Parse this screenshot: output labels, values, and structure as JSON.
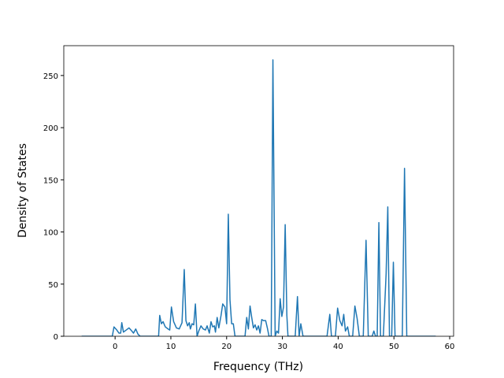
{
  "chart_data": {
    "type": "line",
    "x_label": "Frequency (THz)",
    "y_label": "Density of States",
    "color": "#1f77b4",
    "x": [
      -6,
      -0.5,
      -0.2,
      0.3,
      0.7,
      1.0,
      1.2,
      1.5,
      2.0,
      2.5,
      3.0,
      3.3,
      3.7,
      4.1,
      4.5,
      7.8,
      8.0,
      8.3,
      8.6,
      9.0,
      9.5,
      9.8,
      10.1,
      10.5,
      11.0,
      11.5,
      12.0,
      12.4,
      12.7,
      13.0,
      13.3,
      13.5,
      13.8,
      14.1,
      14.4,
      14.7,
      15.0,
      15.4,
      15.8,
      16.2,
      16.5,
      16.9,
      17.2,
      17.5,
      17.8,
      18.0,
      18.3,
      18.6,
      19.0,
      19.3,
      19.7,
      20.0,
      20.3,
      20.6,
      20.9,
      21.2,
      21.5,
      23.3,
      23.6,
      23.9,
      24.2,
      24.5,
      24.8,
      25.1,
      25.4,
      25.7,
      26.0,
      26.3,
      26.6,
      27.0,
      27.3,
      27.6,
      28.0,
      28.3,
      28.7,
      29.0,
      29.3,
      29.6,
      29.9,
      30.2,
      30.5,
      30.8,
      31.0,
      32.3,
      32.7,
      33.0,
      33.3,
      33.7,
      38.0,
      38.5,
      38.8,
      39.5,
      39.9,
      40.3,
      40.7,
      41.0,
      41.3,
      41.7,
      42.0,
      42.6,
      43.0,
      43.4,
      43.8,
      44.5,
      45.0,
      45.4,
      46.1,
      46.4,
      46.7,
      47.0,
      47.3,
      47.6,
      48.1,
      48.6,
      48.9,
      49.2,
      49.6,
      49.9,
      50.2,
      51.5,
      51.9,
      52.3,
      57.5
    ],
    "values": [
      0,
      0,
      9,
      6,
      3,
      3,
      13,
      4,
      6,
      8,
      5,
      3,
      7,
      2,
      0,
      0,
      20,
      12,
      14,
      9,
      7,
      6,
      28,
      14,
      8,
      7,
      13,
      64,
      15,
      10,
      13,
      7,
      12,
      11,
      31,
      0,
      5,
      10,
      7,
      6,
      10,
      3,
      14,
      9,
      10,
      4,
      18,
      8,
      20,
      31,
      28,
      12,
      117,
      35,
      12,
      12,
      0,
      0,
      18,
      7,
      29,
      18,
      8,
      11,
      6,
      10,
      3,
      16,
      15,
      15,
      8,
      0,
      0,
      265,
      0,
      5,
      3,
      36,
      19,
      28,
      107,
      20,
      0,
      0,
      38,
      0,
      12,
      0,
      0,
      21,
      0,
      0,
      27,
      15,
      10,
      21,
      5,
      9,
      0,
      0,
      29,
      17,
      0,
      0,
      92,
      0,
      0,
      5,
      0,
      0,
      109,
      0,
      0,
      60,
      124,
      0,
      0,
      71,
      0,
      0,
      161,
      0,
      0
    ],
    "xlim": [
      -9.2,
      60.7
    ],
    "ylim": [
      0,
      278.6
    ],
    "xticks": [
      0,
      10,
      20,
      30,
      40,
      50,
      60
    ],
    "yticks": [
      0,
      50,
      100,
      150,
      200,
      250
    ]
  }
}
